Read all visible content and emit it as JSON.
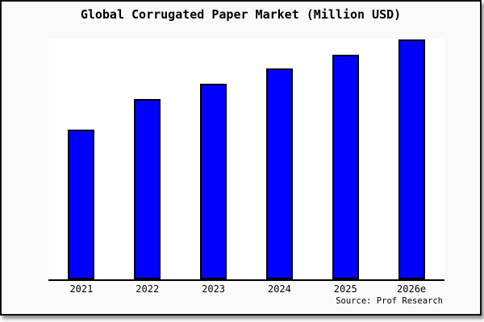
{
  "window": {
    "background_color": "#fafafa",
    "frame_border_color": "#111111",
    "plot_background_color": "#ffffff",
    "axis_color": "#000000"
  },
  "chart_data": {
    "type": "bar",
    "title": "Global Corrugated Paper Market (Million USD)",
    "categories": [
      "2021",
      "2022",
      "2023",
      "2024",
      "2025",
      "2026e"
    ],
    "values": [
      62.5,
      75,
      81.5,
      88,
      93.5,
      100
    ],
    "value_scale_note": "no numeric y-axis shown; values are relative bar heights with tallest bar (2026e) = 100",
    "xlabel": "",
    "ylabel": "",
    "ylim": [
      0,
      101
    ],
    "grid": false,
    "legend": false,
    "bar_color": "#0000ff",
    "bar_border_color": "#000000",
    "source_note": "Source: Prof Research"
  }
}
